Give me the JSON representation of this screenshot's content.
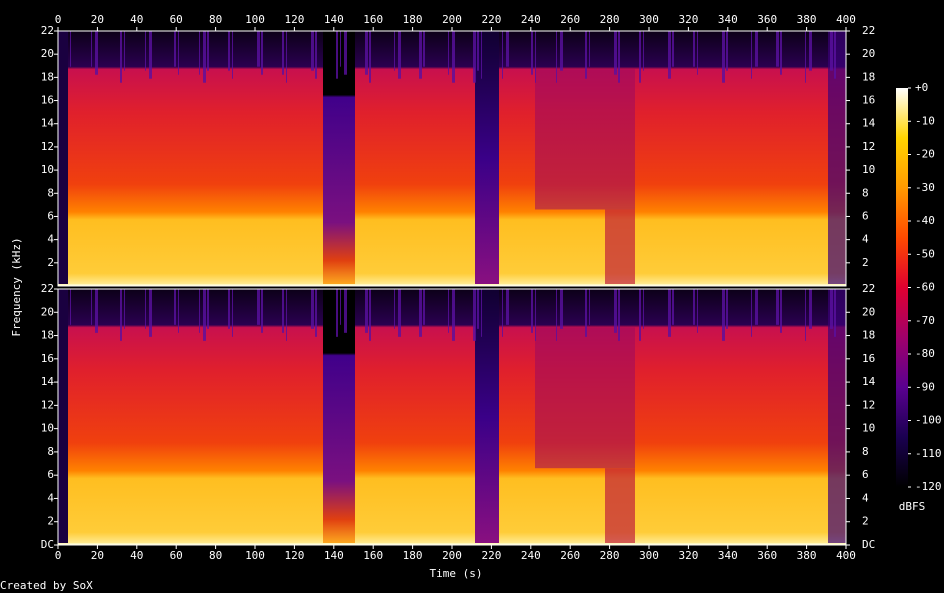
{
  "chart_data": {
    "type": "spectrogram",
    "x_label": "Time (s)",
    "y_label": "Frequency (kHz)",
    "credit": "Created by SoX",
    "xlim": [
      0,
      400
    ],
    "xticks": [
      0,
      20,
      40,
      60,
      80,
      100,
      120,
      140,
      160,
      180,
      200,
      220,
      240,
      260,
      280,
      300,
      320,
      340,
      360,
      380,
      400
    ],
    "ylim": [
      0,
      22
    ],
    "yticks": [
      {
        "value": 0,
        "label": "DC"
      },
      2,
      4,
      6,
      8,
      10,
      12,
      14,
      16,
      18,
      20,
      22
    ],
    "colorbar": {
      "label": "dBFS",
      "lim": [
        -120,
        0
      ],
      "ticks": [
        {
          "value": 0,
          "label": "+0"
        },
        -10,
        -20,
        -30,
        -40,
        -50,
        -60,
        -70,
        -80,
        -90,
        -100,
        -110,
        -120
      ],
      "colors": [
        "#000000",
        "#1a0050",
        "#5a0090",
        "#a0006a",
        "#e00030",
        "#ff4a00",
        "#ff9a00",
        "#ffd400",
        "#ffffff"
      ]
    }
  }
}
